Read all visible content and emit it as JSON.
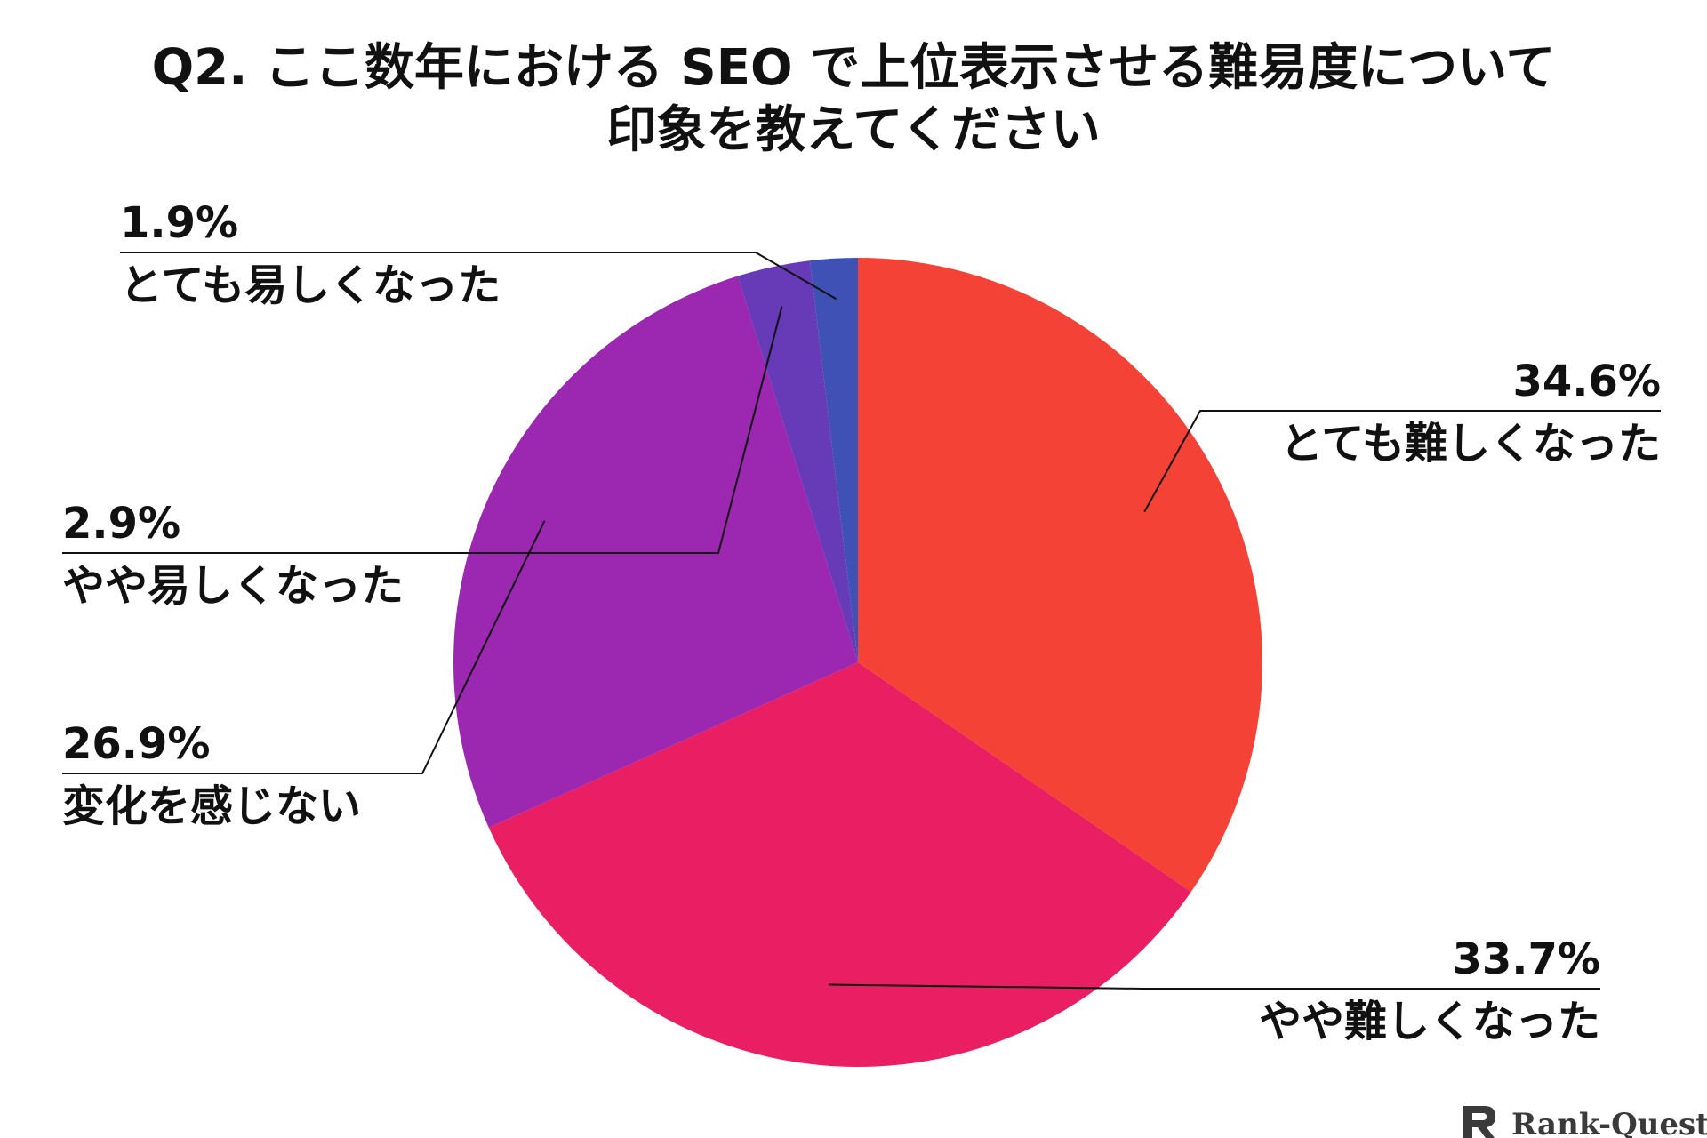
{
  "title_lines": [
    "Q2. ここ数年における SEO で上位表示させる難易度について",
    "印象を教えてください"
  ],
  "brand": {
    "name": "Rank-Quest",
    "logo_icon": "rank-quest-logo-icon"
  },
  "chart_data": {
    "type": "pie",
    "title": "Q2. ここ数年における SEO で上位表示させる難易度について 印象を教えてください",
    "start_angle": "top",
    "direction": "clockwise",
    "slices": [
      {
        "label": "とても難しくなった",
        "value": 34.6,
        "display": "34.6%",
        "color": "#F44336"
      },
      {
        "label": "やや難しくなった",
        "value": 33.7,
        "display": "33.7%",
        "color": "#E91E63"
      },
      {
        "label": "変化を感じない",
        "value": 26.9,
        "display": "26.9%",
        "color": "#9C27B0"
      },
      {
        "label": "やや易しくなった",
        "value": 2.9,
        "display": "2.9%",
        "color": "#673AB7"
      },
      {
        "label": "とても易しくなった",
        "value": 1.9,
        "display": "1.9%",
        "color": "#3F51B5"
      }
    ]
  }
}
